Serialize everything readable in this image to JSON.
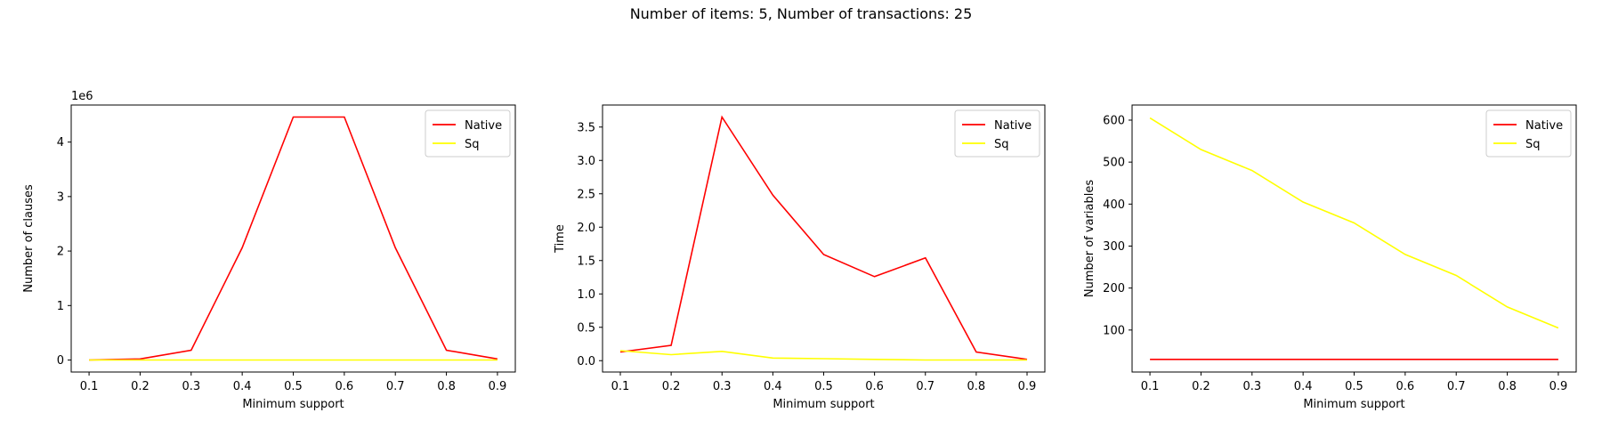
{
  "figure": {
    "title": "Number of items: 5, Number of transactions: 25"
  },
  "chart_data": [
    {
      "type": "line",
      "xlabel": "Minimum support",
      "ylabel": "Number of clauses",
      "offset_text": "1e6",
      "x": [
        0.1,
        0.2,
        0.3,
        0.4,
        0.5,
        0.6,
        0.7,
        0.8,
        0.9
      ],
      "xticks": [
        "0.1",
        "0.2",
        "0.3",
        "0.4",
        "0.5",
        "0.6",
        "0.7",
        "0.8",
        "0.9"
      ],
      "ylim": [
        -0.22,
        4.68
      ],
      "yticks": [
        0,
        1,
        2,
        3,
        4
      ],
      "ytick_labels": [
        "0",
        "1",
        "2",
        "3",
        "4"
      ],
      "legend_position": "top-right",
      "series": [
        {
          "name": "Native",
          "color": "#ff0000",
          "values": [
            0.0,
            0.02,
            0.18,
            2.06,
            4.46,
            4.46,
            2.06,
            0.18,
            0.02
          ]
        },
        {
          "name": "Sq",
          "color": "#ffff00",
          "values": [
            0.0,
            0.0,
            0.0,
            0.0,
            0.0,
            0.0,
            0.0,
            0.0,
            0.0
          ]
        }
      ]
    },
    {
      "type": "line",
      "xlabel": "Minimum support",
      "ylabel": "Time",
      "offset_text": "",
      "x": [
        0.1,
        0.2,
        0.3,
        0.4,
        0.5,
        0.6,
        0.7,
        0.8,
        0.9
      ],
      "xticks": [
        "0.1",
        "0.2",
        "0.3",
        "0.4",
        "0.5",
        "0.6",
        "0.7",
        "0.8",
        "0.9"
      ],
      "ylim": [
        -0.17,
        3.83
      ],
      "yticks": [
        0,
        0.5,
        1,
        1.5,
        2,
        2.5,
        3,
        3.5
      ],
      "ytick_labels": [
        "0.0",
        "0.5",
        "1.0",
        "1.5",
        "2.0",
        "2.5",
        "3.0",
        "3.5"
      ],
      "legend_position": "top-right",
      "series": [
        {
          "name": "Native",
          "color": "#ff0000",
          "values": [
            0.13,
            0.23,
            3.65,
            2.48,
            1.59,
            1.26,
            1.54,
            0.13,
            0.02
          ]
        },
        {
          "name": "Sq",
          "color": "#ffff00",
          "values": [
            0.15,
            0.09,
            0.14,
            0.04,
            0.03,
            0.02,
            0.01,
            0.01,
            0.01
          ]
        }
      ]
    },
    {
      "type": "line",
      "xlabel": "Minimum support",
      "ylabel": "Number of variables",
      "offset_text": "",
      "x": [
        0.1,
        0.2,
        0.3,
        0.4,
        0.5,
        0.6,
        0.7,
        0.8,
        0.9
      ],
      "xticks": [
        "0.1",
        "0.2",
        "0.3",
        "0.4",
        "0.5",
        "0.6",
        "0.7",
        "0.8",
        "0.9"
      ],
      "ylim": [
        0,
        636
      ],
      "yticks": [
        100,
        200,
        300,
        400,
        500,
        600
      ],
      "ytick_labels": [
        "100",
        "200",
        "300",
        "400",
        "500",
        "600"
      ],
      "legend_position": "top-right",
      "series": [
        {
          "name": "Native",
          "color": "#ff0000",
          "values": [
            30,
            30,
            30,
            30,
            30,
            30,
            30,
            30,
            30
          ]
        },
        {
          "name": "Sq",
          "color": "#ffff00",
          "values": [
            605,
            530,
            480,
            405,
            355,
            280,
            230,
            155,
            105
          ]
        }
      ]
    }
  ]
}
